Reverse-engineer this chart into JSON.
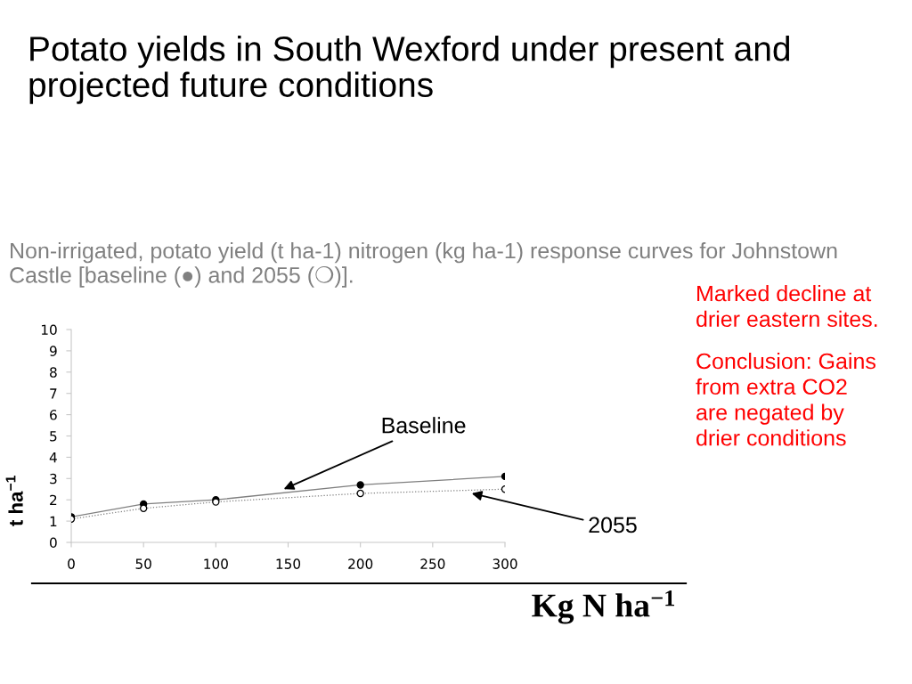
{
  "chart_data": {
    "type": "scatter",
    "title": "Potato yields in South Wexford under present and projected future conditions",
    "subtitle": "Non-irrigated, potato yield (t ha-1) nitrogen (kg ha-1) response curves for Johnstown Castle [baseline (●) and 2055 (❍)].",
    "xlabel": "Kg N ha$^{−1}$",
    "ylabel": "t ha$^{−1}$",
    "x": [
      0,
      50,
      100,
      200,
      300
    ],
    "series": [
      {
        "type": "line",
        "color": "#7f7f7f",
        "line_style": "solid",
        "marker": "none",
        "values": [
          1.2,
          1.8,
          2.0,
          2.7,
          3.1
        ]
      },
      {
        "color": "#000000",
        "marker": "circle",
        "values": [
          1.2,
          1.8,
          2.0,
          2.7,
          3.1
        ]
      },
      {
        "type": "line",
        "color": "#7f7f7f",
        "line_style": "dotted",
        "marker": "none",
        "values": [
          1.1,
          1.6,
          1.9,
          2.3,
          2.5
        ]
      },
      {
        "color": "#ffffff",
        "marker": "circle",
        "values": [
          1.1,
          1.6,
          1.9,
          2.3,
          2.5
        ]
      }
    ],
    "xlim": [
      0,
      300
    ],
    "ylim": [
      0,
      10
    ],
    "xticks": [
      0,
      50,
      100,
      150,
      200,
      250,
      300
    ],
    "yticks": [
      0,
      1,
      2,
      3,
      4,
      5,
      6,
      7,
      8,
      9,
      10
    ],
    "annotations": [
      {
        "text": "Baseline",
        "x": 147,
        "y": 2.5
      },
      {
        "text": "2055",
        "x": 277,
        "y": 2.3
      },
      "Marked decline at drier eastern sites.",
      "Conclusion: Gains from extra CO2 are negated by drier conditions"
    ]
  }
}
